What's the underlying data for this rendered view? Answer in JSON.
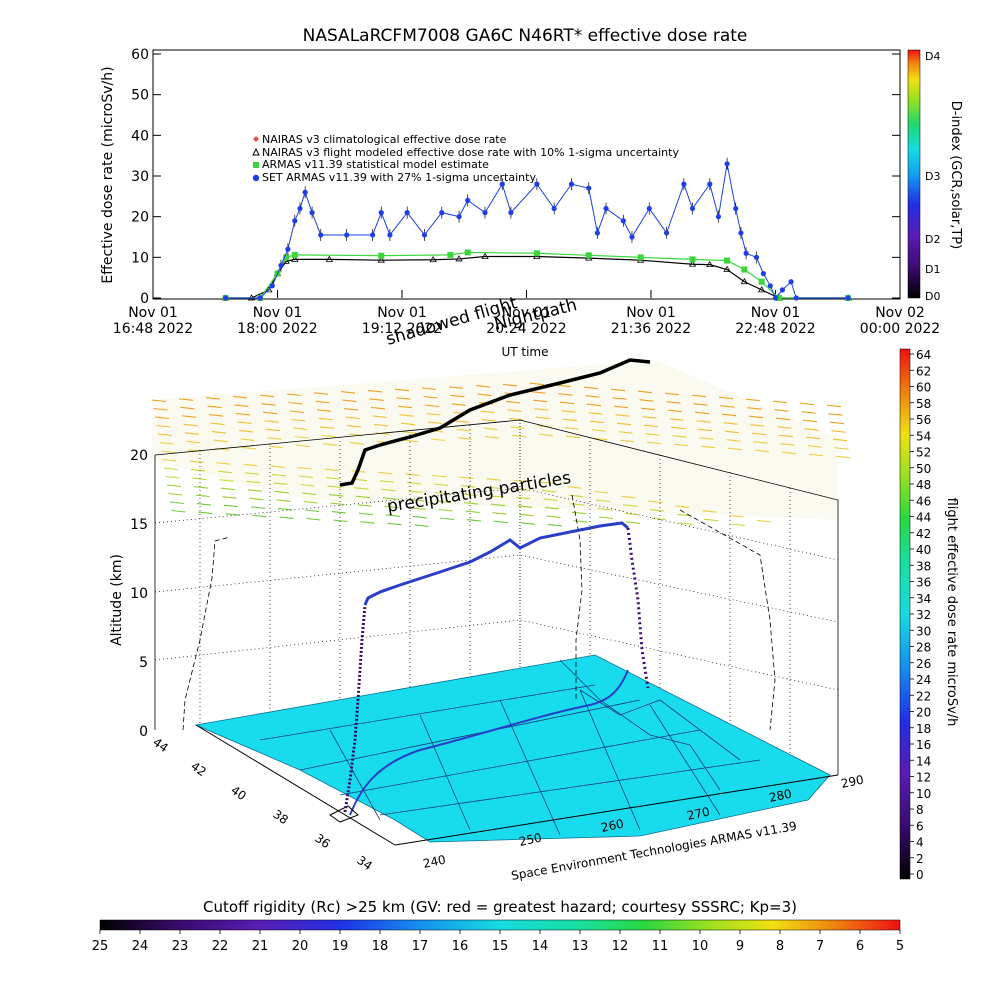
{
  "page": {
    "title": "NASALaRCFM7008  GA6C N46RT* effective dose rate"
  },
  "chart_data": [
    {
      "type": "scatter",
      "title": "NASALaRCFM7008  GA6C N46RT* effective dose rate",
      "xlabel": "UT time",
      "ylabel": "Effective dose rate (microSv/h)",
      "ylim": [
        0,
        60
      ],
      "yticks": [
        0,
        10,
        20,
        30,
        40,
        50,
        60
      ],
      "xlim": [
        "2022-11-01 16:48",
        "2022-11-02 00:00"
      ],
      "xticks": [
        {
          "t": "2022-11-01 16:48",
          "l1": "Nov 01",
          "l2": "16:48 2022"
        },
        {
          "t": "2022-11-01 18:00",
          "l1": "Nov 01",
          "l2": "18:00 2022"
        },
        {
          "t": "2022-11-01 19:12",
          "l1": "Nov 01",
          "l2": "19:12 2022"
        },
        {
          "t": "2022-11-01 20:24",
          "l1": "Nov 01",
          "l2": "20:24 2022"
        },
        {
          "t": "2022-11-01 21:36",
          "l1": "Nov 01",
          "l2": "21:36 2022"
        },
        {
          "t": "2022-11-01 22:48",
          "l1": "Nov 01",
          "l2": "22:48 2022"
        },
        {
          "t": "2022-11-02 00:00",
          "l1": "Nov 02",
          "l2": "00:00 2022"
        }
      ],
      "right_axis": {
        "label": "D-index (GCR,solar,TP)",
        "ticks": [
          "D0",
          "D1",
          "D2",
          "D3",
          "D4"
        ]
      },
      "annotations": [
        "shadowed flight",
        "Nightpath"
      ],
      "legend": [
        {
          "name": "NAIRAS v3 climatological effective dose rate",
          "color": "#e05050",
          "marker": "diamond"
        },
        {
          "name": "NAIRAS v3 flight modeled effective dose rate with 10% 1-sigma uncertainty",
          "color": "#000000",
          "marker": "triangle"
        },
        {
          "name": "ARMAS v11.39 statistical model estimate",
          "color": "#39d63a",
          "marker": "square"
        },
        {
          "name": "SET ARMAS v11.39 with 27% 1-sigma uncertainty",
          "color": "#1e3fe6",
          "marker": "circle"
        }
      ],
      "series": [
        {
          "name": "NAIRAS v3 flight modeled effective dose rate with 10% 1-sigma uncertainty",
          "color": "#000000",
          "points": [
            [
              "17:30",
              0
            ],
            [
              "17:45",
              0
            ],
            [
              "17:55",
              2
            ],
            [
              "18:00",
              6
            ],
            [
              "18:05",
              9
            ],
            [
              "18:10",
              9.5
            ],
            [
              "18:30",
              9.5
            ],
            [
              "19:00",
              9.3
            ],
            [
              "19:30",
              9.4
            ],
            [
              "19:45",
              9.6
            ],
            [
              "20:00",
              10.2
            ],
            [
              "20:30",
              10.2
            ],
            [
              "21:00",
              9.8
            ],
            [
              "21:30",
              9.3
            ],
            [
              "22:00",
              8.3
            ],
            [
              "22:10",
              8.2
            ],
            [
              "22:20",
              7
            ],
            [
              "22:30",
              4
            ],
            [
              "22:40",
              2
            ],
            [
              "22:50",
              0
            ],
            [
              "23:30",
              0
            ]
          ]
        },
        {
          "name": "ARMAS v11.39 statistical model estimate",
          "color": "#39d63a",
          "points": [
            [
              "17:30",
              0
            ],
            [
              "17:50",
              0
            ],
            [
              "18:00",
              6
            ],
            [
              "18:05",
              10
            ],
            [
              "18:10",
              10.6
            ],
            [
              "19:00",
              10.4
            ],
            [
              "19:40",
              10.6
            ],
            [
              "19:50",
              11.2
            ],
            [
              "20:30",
              11
            ],
            [
              "21:00",
              10.5
            ],
            [
              "21:30",
              10
            ],
            [
              "22:00",
              9.5
            ],
            [
              "22:20",
              9.2
            ],
            [
              "22:30",
              7
            ],
            [
              "22:40",
              4
            ],
            [
              "22:50",
              0
            ],
            [
              "23:30",
              0
            ]
          ]
        },
        {
          "name": "SET ARMAS v11.39 with 27% 1-sigma uncertainty",
          "color": "#1e3fe6",
          "points": [
            [
              "17:30",
              0
            ],
            [
              "17:50",
              0
            ],
            [
              "17:57",
              3
            ],
            [
              "18:02",
              8
            ],
            [
              "18:06",
              12
            ],
            [
              "18:10",
              19
            ],
            [
              "18:13",
              22
            ],
            [
              "18:16",
              26
            ],
            [
              "18:20",
              21
            ],
            [
              "18:25",
              15.5
            ],
            [
              "18:40",
              15.5
            ],
            [
              "18:55",
              15.5
            ],
            [
              "19:00",
              21
            ],
            [
              "19:05",
              15.5
            ],
            [
              "19:15",
              21
            ],
            [
              "19:25",
              15.5
            ],
            [
              "19:35",
              21
            ],
            [
              "19:45",
              20
            ],
            [
              "19:50",
              24
            ],
            [
              "20:00",
              21
            ],
            [
              "20:10",
              28
            ],
            [
              "20:15",
              21
            ],
            [
              "20:30",
              28
            ],
            [
              "20:40",
              22
            ],
            [
              "20:50",
              28
            ],
            [
              "21:00",
              27
            ],
            [
              "21:05",
              16
            ],
            [
              "21:10",
              22
            ],
            [
              "21:20",
              19
            ],
            [
              "21:25",
              15
            ],
            [
              "21:35",
              22
            ],
            [
              "21:45",
              16
            ],
            [
              "21:55",
              28
            ],
            [
              "22:00",
              22
            ],
            [
              "22:10",
              28
            ],
            [
              "22:15",
              20
            ],
            [
              "22:20",
              33
            ],
            [
              "22:25",
              22
            ],
            [
              "22:28",
              16
            ],
            [
              "22:31",
              11
            ],
            [
              "22:37",
              10
            ],
            [
              "22:41",
              6
            ],
            [
              "22:45",
              3
            ],
            [
              "22:48",
              0
            ],
            [
              "22:52",
              2
            ],
            [
              "22:57",
              4
            ],
            [
              "23:00",
              0
            ],
            [
              "23:30",
              0
            ]
          ]
        }
      ]
    },
    {
      "type": "scatter",
      "xlabel": "",
      "ylabel": "Altitude (km)",
      "zlim": [
        0,
        20
      ],
      "zticks": [
        0,
        5,
        10,
        15,
        20
      ],
      "lat_ticks": [
        "44",
        "42",
        "40",
        "38",
        "36",
        "34"
      ],
      "lon_ticks": [
        "240",
        "250",
        "260",
        "270",
        "280",
        "290"
      ],
      "annotations": [
        "precipitating particles"
      ],
      "credit": "Space Environment Technologies ARMAS v11.39",
      "colorbar": {
        "label": "flight effective dose rate microSv/h",
        "ticks": [
          "0",
          "2",
          "4",
          "6",
          "8",
          "10",
          "12",
          "14",
          "16",
          "18",
          "20",
          "22",
          "24",
          "26",
          "28",
          "30",
          "32",
          "34",
          "36",
          "38",
          "40",
          "42",
          "44",
          "46",
          "48",
          "50",
          "52",
          "54",
          "56",
          "58",
          "60",
          "62",
          "64"
        ]
      }
    },
    {
      "type": "heatmap",
      "title": "Cutoff rigidity (Rc) >25 km (GV: red = greatest hazard; courtesy SSSRC; Kp=3)",
      "ticks": [
        "25",
        "24",
        "23",
        "22",
        "21",
        "20",
        "19",
        "18",
        "17",
        "16",
        "15",
        "14",
        "13",
        "12",
        "11",
        "10",
        "9",
        "8",
        "7",
        "6",
        "5"
      ],
      "colors": [
        "#000000",
        "#3a0a6e",
        "#5a1cb4",
        "#2030e6",
        "#1490f0",
        "#17dbe0",
        "#18e0a0",
        "#28d840",
        "#98e020",
        "#f0e010",
        "#f08010",
        "#f01010"
      ]
    }
  ]
}
